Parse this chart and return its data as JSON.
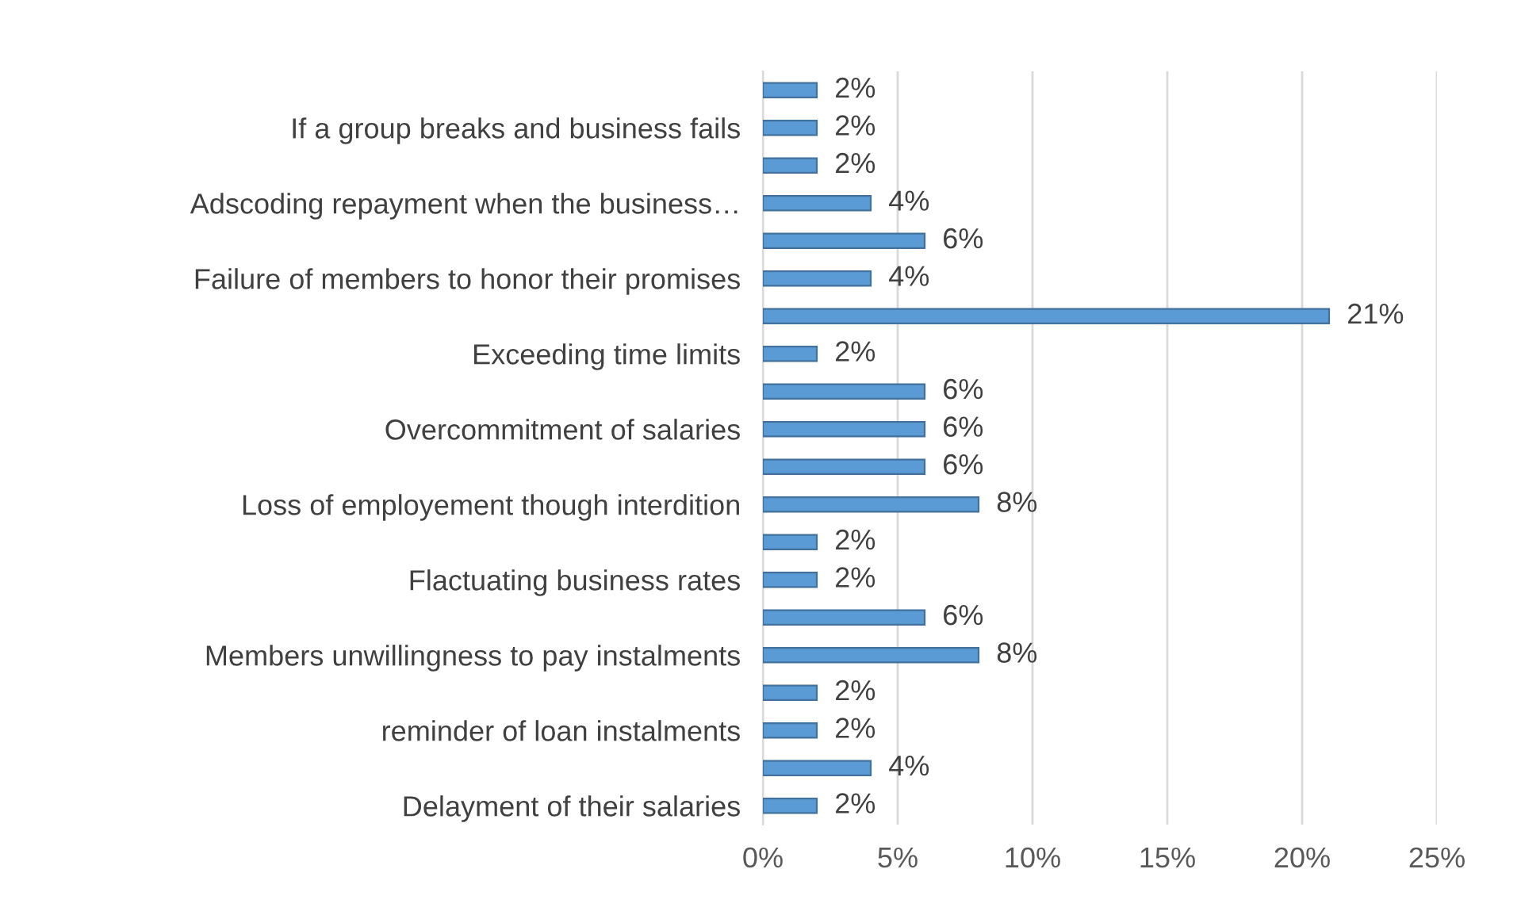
{
  "chart_data": {
    "type": "bar",
    "orientation": "horizontal",
    "categories": [
      null,
      "If a group breaks and business fails",
      null,
      "Adscoding repayment when the business…",
      null,
      "Failure of members to honor their promises",
      null,
      "Exceeding time limits",
      null,
      "Overcommitment of salaries",
      null,
      "Loss of employement though interdition",
      null,
      "Flactuating business rates",
      null,
      "Members unwillingness to pay instalments",
      null,
      "reminder of loan instalments",
      null,
      "Delayment of their salaries"
    ],
    "values": [
      2,
      2,
      2,
      4,
      6,
      4,
      21,
      2,
      6,
      6,
      6,
      8,
      2,
      2,
      6,
      8,
      2,
      2,
      4,
      2
    ],
    "value_labels": [
      "2%",
      "2%",
      "2%",
      "4%",
      "6%",
      "4%",
      "21%",
      "2%",
      "6%",
      "6%",
      "6%",
      "8%",
      "2%",
      "2%",
      "6%",
      "8%",
      "2%",
      "2%",
      "4%",
      "2%"
    ],
    "color": "#5b9bd5",
    "xlim": [
      0,
      25
    ],
    "xticks": [
      {
        "value": 0,
        "label": "0%"
      },
      {
        "value": 5,
        "label": "5%"
      },
      {
        "value": 10,
        "label": "10%"
      },
      {
        "value": 15,
        "label": "15%"
      },
      {
        "value": 20,
        "label": "20%"
      },
      {
        "value": 25,
        "label": "25%"
      }
    ],
    "grid": "x",
    "legend": false
  }
}
